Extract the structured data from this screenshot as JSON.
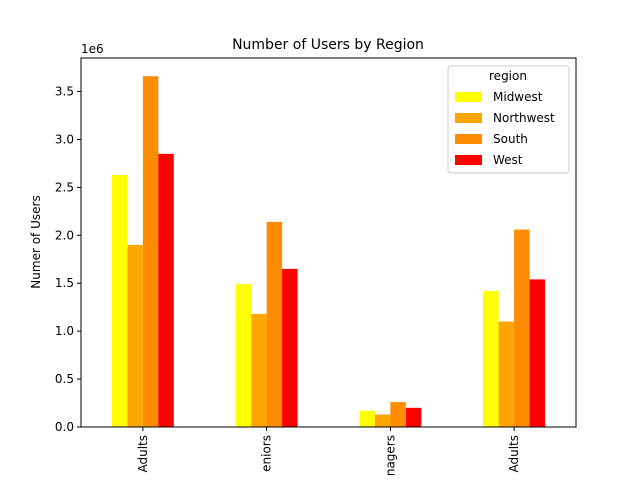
{
  "chart_data": {
    "type": "bar",
    "title": "Number of Users by Region",
    "xlabel": "",
    "ylabel": "Numer of Users",
    "y_offset_label": "1e6",
    "categories": [
      "Adults",
      "eniors",
      "nagers",
      "Adults"
    ],
    "ylim": [
      0,
      3.85
    ],
    "yticks": [
      0.0,
      0.5,
      1.0,
      1.5,
      2.0,
      2.5,
      3.0,
      3.5
    ],
    "ytick_labels": [
      "0.0",
      "0.5",
      "1.0",
      "1.5",
      "2.0",
      "2.5",
      "3.0",
      "3.5"
    ],
    "grid": false,
    "legend_title": "region",
    "legend_placement": "top-right",
    "series": [
      {
        "name": "Midwest",
        "color": "#ffff00",
        "values": [
          2.63,
          1.49,
          0.17,
          1.42
        ]
      },
      {
        "name": "Northwest",
        "color": "#ffa500",
        "values": [
          1.9,
          1.18,
          0.13,
          1.1
        ]
      },
      {
        "name": "South",
        "color": "#ff8c00",
        "values": [
          3.66,
          2.14,
          0.26,
          2.06
        ]
      },
      {
        "name": "West",
        "color": "#ff0000",
        "values": [
          2.85,
          1.65,
          0.2,
          1.54
        ]
      }
    ]
  }
}
